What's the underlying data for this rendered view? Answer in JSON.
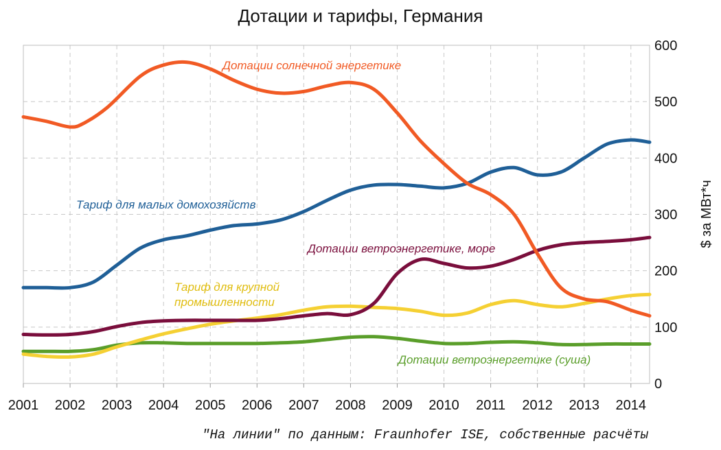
{
  "chart_data": {
    "type": "line",
    "title": "Дотации и тарифы, Германия",
    "xlabel": "",
    "ylabel": "$ за МВт*ч",
    "xlim": [
      2001,
      2014.4
    ],
    "ylim": [
      0,
      600
    ],
    "x_ticks": [
      "2001",
      "2002",
      "2003",
      "2004",
      "2005",
      "2006",
      "2007",
      "2008",
      "2009",
      "2010",
      "2011",
      "2012",
      "2013",
      "2014"
    ],
    "y_ticks": [
      "0",
      "100",
      "200",
      "300",
      "400",
      "500",
      "600"
    ],
    "grid": true,
    "series": [
      {
        "name": "Дотации солнечной энергетике",
        "color": "#f15a24",
        "x": [
          2001,
          2001.5,
          2002,
          2002.3,
          2002.8,
          2003.5,
          2004,
          2004.5,
          2005,
          2005.5,
          2006,
          2006.5,
          2007,
          2007.5,
          2008,
          2008.5,
          2009,
          2009.5,
          2010,
          2010.5,
          2011,
          2011.5,
          2012,
          2012.5,
          2013,
          2013.5,
          2014,
          2014.4
        ],
        "values": [
          473,
          465,
          455,
          462,
          490,
          545,
          565,
          570,
          558,
          538,
          522,
          515,
          518,
          528,
          534,
          522,
          480,
          430,
          390,
          355,
          335,
          300,
          230,
          170,
          150,
          145,
          130,
          120
        ]
      },
      {
        "name": "Тариф для малых домохозяйств",
        "color": "#1f5f97",
        "x": [
          2001,
          2001.5,
          2002,
          2002.5,
          2003,
          2003.5,
          2004,
          2004.5,
          2005,
          2005.5,
          2006,
          2006.5,
          2007,
          2007.5,
          2008,
          2008.5,
          2009,
          2009.5,
          2010,
          2010.5,
          2011,
          2011.5,
          2012,
          2012.5,
          2013,
          2013.5,
          2014,
          2014.4
        ],
        "values": [
          170,
          170,
          170,
          180,
          210,
          240,
          255,
          262,
          272,
          280,
          283,
          290,
          305,
          325,
          343,
          352,
          353,
          350,
          347,
          355,
          375,
          383,
          370,
          375,
          400,
          425,
          432,
          428
        ]
      },
      {
        "name": "Дотации ветроэнергетике, море",
        "color": "#7a0e3c",
        "x": [
          2001,
          2001.5,
          2002,
          2002.5,
          2003,
          2003.5,
          2004,
          2004.5,
          2005,
          2005.5,
          2006,
          2006.5,
          2007,
          2007.5,
          2008,
          2008.5,
          2009,
          2009.5,
          2010,
          2010.5,
          2011,
          2011.5,
          2012,
          2012.5,
          2013,
          2013.5,
          2014,
          2014.4
        ],
        "values": [
          87,
          86,
          87,
          92,
          101,
          108,
          111,
          112,
          112,
          112,
          112,
          115,
          120,
          124,
          122,
          142,
          195,
          220,
          213,
          205,
          208,
          220,
          236,
          246,
          250,
          252,
          255,
          259
        ]
      },
      {
        "name": "Тариф для крупной промышленности",
        "color": "#f5d033",
        "x": [
          2001,
          2001.5,
          2002,
          2002.5,
          2003,
          2003.5,
          2004,
          2004.5,
          2005,
          2005.5,
          2006,
          2006.5,
          2007,
          2007.5,
          2008,
          2008.5,
          2009,
          2009.5,
          2010,
          2010.5,
          2011,
          2011.5,
          2012,
          2012.5,
          2013,
          2013.5,
          2014,
          2014.4
        ],
        "values": [
          52,
          48,
          47,
          52,
          65,
          77,
          88,
          97,
          105,
          111,
          116,
          122,
          130,
          136,
          137,
          135,
          133,
          128,
          121,
          125,
          140,
          147,
          140,
          136,
          142,
          150,
          156,
          158
        ]
      },
      {
        "name": "Дотации ветроэнергетике (суша)",
        "color": "#5a9e2a",
        "x": [
          2001,
          2001.5,
          2002,
          2002.5,
          2003,
          2003.5,
          2004,
          2004.5,
          2005,
          2005.5,
          2006,
          2006.5,
          2007,
          2007.5,
          2008,
          2008.5,
          2009,
          2009.5,
          2010,
          2010.5,
          2011,
          2011.5,
          2012,
          2012.5,
          2013,
          2013.5,
          2014,
          2014.4
        ],
        "values": [
          57,
          57,
          57,
          60,
          68,
          72,
          72,
          71,
          71,
          71,
          71,
          72,
          74,
          78,
          82,
          83,
          80,
          75,
          71,
          71,
          73,
          74,
          72,
          69,
          69,
          70,
          70,
          70
        ]
      }
    ],
    "annotations": [
      {
        "text": "Дотации солнечной энергетике",
        "color": "#f15a24"
      },
      {
        "text": "Тариф для малых домохозяйств",
        "color": "#1f5f97"
      },
      {
        "text": "Дотации ветроэнергетике, море",
        "color": "#7a0e3c"
      },
      {
        "text": "Тариф для крупной",
        "color": "#e0bd10"
      },
      {
        "text": "промышленности",
        "color": "#e0bd10"
      },
      {
        "text": "Дотации ветроэнергетике (суша)",
        "color": "#5a9e2a"
      }
    ]
  },
  "caption": "\"На линии\" по данным: Fraunhofer ISE, собственные расчёты"
}
